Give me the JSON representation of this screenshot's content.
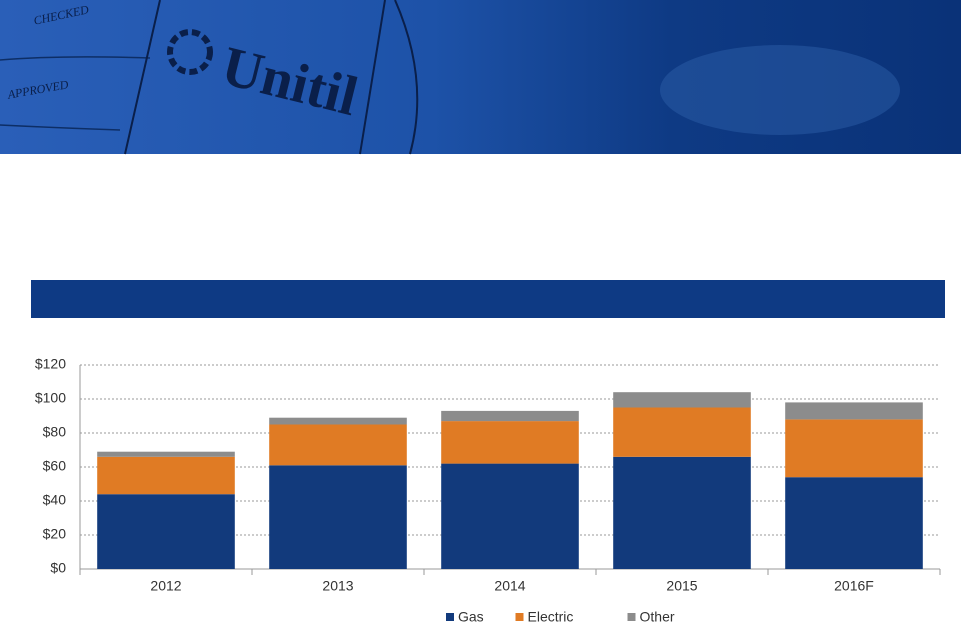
{
  "header": {
    "logo": "Unitil",
    "stamps": [
      "CHECKED",
      "APPROVED"
    ]
  },
  "chart_data": {
    "type": "stacked_bar",
    "categories": [
      "2012",
      "2013",
      "2014",
      "2015",
      "2016F"
    ],
    "series": [
      {
        "name": "Gas",
        "color": "#123a7c",
        "values": [
          44,
          61,
          62,
          66,
          54
        ]
      },
      {
        "name": "Electric",
        "color": "#e07b24",
        "values": [
          22,
          24,
          25,
          29,
          34
        ]
      },
      {
        "name": "Other",
        "color": "#8c8c8c",
        "values": [
          3,
          4,
          6,
          9,
          10
        ]
      }
    ],
    "ylim": [
      0,
      120
    ],
    "yticks": [
      {
        "value": 0,
        "label": "$0"
      },
      {
        "value": 20,
        "label": "$20"
      },
      {
        "value": 40,
        "label": "$40"
      },
      {
        "value": 60,
        "label": "$60"
      },
      {
        "value": 80,
        "label": "$80"
      },
      {
        "value": 100,
        "label": "$100"
      },
      {
        "value": 120,
        "label": "$120"
      }
    ],
    "grid": true,
    "legend": "bottom"
  }
}
